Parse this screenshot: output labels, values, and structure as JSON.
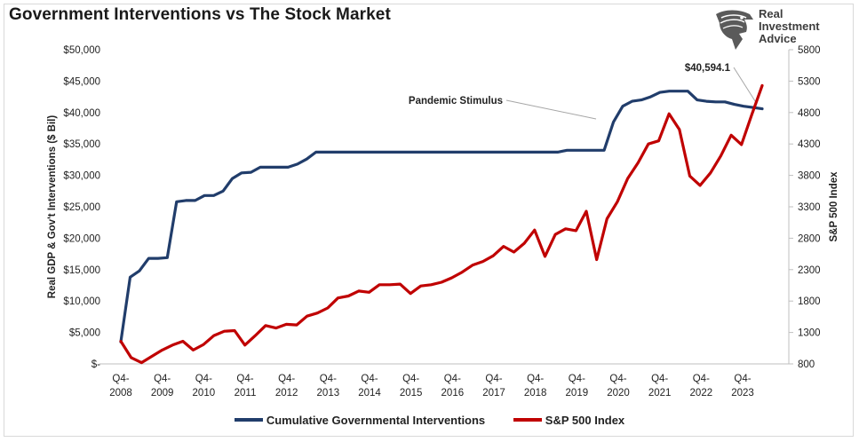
{
  "title": "Government Interventions vs The Stock Market",
  "logo": {
    "lines": [
      "Real",
      "Investment",
      "Advice"
    ],
    "icon": "eagle-head-icon"
  },
  "colors": {
    "interventions": "#213d6b",
    "sp500": "#c00000"
  },
  "chart_data": {
    "type": "line",
    "ylabel_left": "Real GDP & Gov't Interventions ($ Bil)",
    "ylabel_right": "S&P 500 Index",
    "ylim_left": [
      0,
      50000
    ],
    "ylim_right": [
      800,
      5800
    ],
    "left_ticks": [
      "$-",
      "$5,000",
      "$10,000",
      "$15,000",
      "$20,000",
      "$25,000",
      "$30,000",
      "$35,000",
      "$40,000",
      "$45,000",
      "$50,000"
    ],
    "right_ticks": [
      "800",
      "1300",
      "1800",
      "2300",
      "2800",
      "3300",
      "3800",
      "4300",
      "4800",
      "5300",
      "5800"
    ],
    "x_labels": [
      {
        "top": "Q4-",
        "bottom": "2008"
      },
      {
        "top": "Q4-",
        "bottom": "2009"
      },
      {
        "top": "Q4-",
        "bottom": "2010"
      },
      {
        "top": "Q4-",
        "bottom": "2011"
      },
      {
        "top": "Q4-",
        "bottom": "2012"
      },
      {
        "top": "Q4-",
        "bottom": "2013"
      },
      {
        "top": "Q4-",
        "bottom": "2014"
      },
      {
        "top": "Q4-",
        "bottom": "2015"
      },
      {
        "top": "Q4-",
        "bottom": "2016"
      },
      {
        "top": "Q4-",
        "bottom": "2017"
      },
      {
        "top": "Q4-",
        "bottom": "2018"
      },
      {
        "top": "Q4-",
        "bottom": "2019"
      },
      {
        "top": "Q4-",
        "bottom": "2020"
      },
      {
        "top": "Q4-",
        "bottom": "2021"
      },
      {
        "top": "Q4-",
        "bottom": "2022"
      },
      {
        "top": "Q4-",
        "bottom": "2023"
      }
    ],
    "grid": false,
    "legend_position": "bottom",
    "series": [
      {
        "name": "Cumulative Governmental Interventions",
        "axis": "left",
        "values": [
          3500,
          13800,
          14800,
          16800,
          16800,
          16900,
          25800,
          26000,
          26000,
          26800,
          26800,
          27500,
          29500,
          30400,
          30500,
          31300,
          31300,
          31300,
          31300,
          31800,
          32600,
          33700,
          33700,
          33700,
          33700,
          33700,
          33700,
          33700,
          33700,
          33700,
          33700,
          33700,
          33700,
          33700,
          33700,
          33700,
          33700,
          33700,
          33700,
          33700,
          33700,
          33700,
          33700,
          33700,
          33700,
          33700,
          33700,
          33700,
          34000,
          34000,
          34000,
          34000,
          34000,
          38500,
          41000,
          41800,
          42000,
          42500,
          43200,
          43400,
          43400,
          43400,
          42000,
          41800,
          41700,
          41700,
          41300,
          41000,
          40800,
          40594.1
        ]
      },
      {
        "name": "S&P 500 Index",
        "axis": "right",
        "values": [
          1160,
          900,
          820,
          920,
          1020,
          1100,
          1160,
          1020,
          1110,
          1250,
          1320,
          1330,
          1100,
          1250,
          1410,
          1370,
          1430,
          1420,
          1560,
          1610,
          1690,
          1850,
          1880,
          1960,
          1940,
          2060,
          2060,
          2070,
          1920,
          2040,
          2060,
          2100,
          2170,
          2260,
          2370,
          2430,
          2520,
          2670,
          2580,
          2720,
          2930,
          2510,
          2860,
          2950,
          2920,
          3230,
          2460,
          3110,
          3380,
          3750,
          4000,
          4300,
          4350,
          4780,
          4530,
          3790,
          3640,
          3840,
          4110,
          4440,
          4290,
          4770,
          5230
        ]
      }
    ],
    "annotations": [
      {
        "text": "Pandemic Stimulus"
      },
      {
        "text": "$40,594.1"
      }
    ]
  },
  "legend": {
    "items": [
      "Cumulative Governmental Interventions",
      "S&P 500 Index"
    ]
  }
}
